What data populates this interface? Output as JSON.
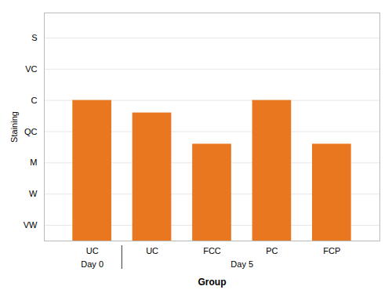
{
  "chart_data": {
    "type": "bar",
    "categories": [
      "UC",
      "UC",
      "FCC",
      "PC",
      "FCP"
    ],
    "groups": [
      "Day 0",
      "Day 5",
      "Day 5",
      "Day 5",
      "Day 5"
    ],
    "values": [
      5.0,
      4.6,
      3.6,
      5.0,
      3.6
    ],
    "color": "#E8771F",
    "xlabel": "Group",
    "ylabel": "Staining",
    "ylim": [
      0.5,
      7.8
    ],
    "yticks": [
      {
        "value": 1,
        "label": "VW"
      },
      {
        "value": 2,
        "label": "W"
      },
      {
        "value": 3,
        "label": "M"
      },
      {
        "value": 4,
        "label": "QC"
      },
      {
        "value": 5,
        "label": "C"
      },
      {
        "value": 6,
        "label": "VC"
      },
      {
        "value": 7,
        "label": "S"
      }
    ],
    "grid": true
  }
}
